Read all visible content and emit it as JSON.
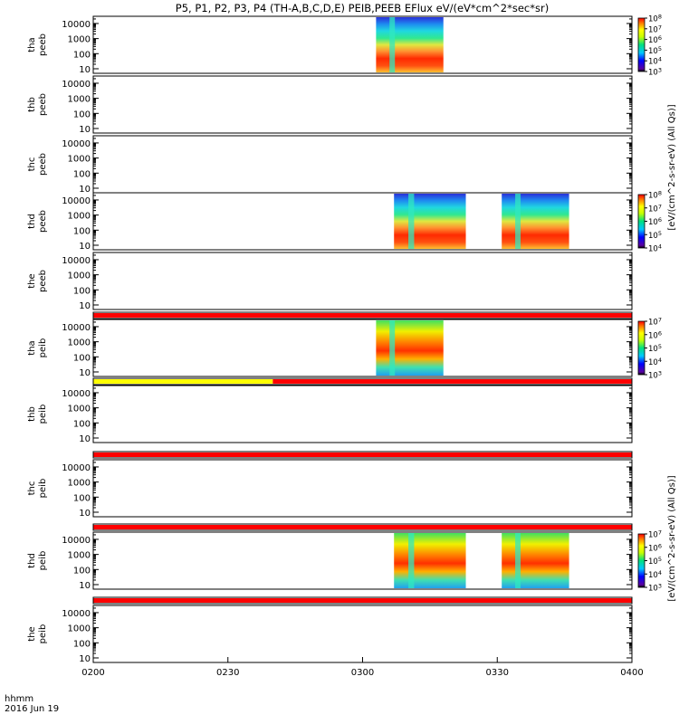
{
  "title": "P5, P1, P2, P3, P4 (TH-A,B,C,D,E) PEIB,PEEB EFlux eV/(eV*cm^2*sec*sr)",
  "corner_label_top": "hhmm",
  "corner_label_bottom": "2016 Jun 19",
  "colorbar_units_top": "[eV/(cm^2-s-sr-eV) (All Qs)]",
  "colorbar_units_bottom": "[eV/(cm^2-s-sr-eV) (All Qs)]",
  "colors": {
    "flag_red": "#ff0000",
    "flag_yellow": "#ffff00"
  },
  "chart_data": {
    "type": "heatmap",
    "x_ticks": [
      "0200",
      "0230",
      "0300",
      "0330",
      "0400"
    ],
    "xlim": [
      "02:00",
      "04:00"
    ],
    "y_ticks": [
      "10",
      "100",
      "1000",
      "10000"
    ],
    "ylim_eV": [
      5,
      30000
    ],
    "y_scale": "log",
    "panels": [
      {
        "name_line1": "tha",
        "name_line2": "peeb",
        "colorbar_ticks": [
          "10^3",
          "10^4",
          "10^5",
          "10^6",
          "10^7",
          "10^8"
        ],
        "data_intervals": [
          {
            "start": "03:03",
            "end": "03:18"
          }
        ]
      },
      {
        "name_line1": "thb",
        "name_line2": "peeb",
        "data_intervals": []
      },
      {
        "name_line1": "thc",
        "name_line2": "peeb",
        "data_intervals": []
      },
      {
        "name_line1": "thd",
        "name_line2": "peeb",
        "colorbar_ticks": [
          "10^4",
          "10^5",
          "10^6",
          "10^7",
          "10^8"
        ],
        "data_intervals": [
          {
            "start": "03:07",
            "end": "03:23"
          },
          {
            "start": "03:31",
            "end": "03:46"
          }
        ]
      },
      {
        "name_line1": "the",
        "name_line2": "peeb",
        "data_intervals": []
      },
      {
        "name_line1": "tha",
        "name_line2": "peib",
        "colorbar_ticks": [
          "10^3",
          "10^4",
          "10^5",
          "10^6",
          "10^7"
        ],
        "data_intervals": [
          {
            "start": "03:03",
            "end": "03:18"
          }
        ]
      },
      {
        "name_line1": "thb",
        "name_line2": "peib",
        "data_intervals": []
      },
      {
        "name_line1": "thc",
        "name_line2": "peib",
        "data_intervals": []
      },
      {
        "name_line1": "thd",
        "name_line2": "peib",
        "colorbar_ticks": [
          "10^3",
          "10^4",
          "10^5",
          "10^6",
          "10^7"
        ],
        "data_intervals": [
          {
            "start": "03:07",
            "end": "03:23"
          },
          {
            "start": "03:31",
            "end": "03:46"
          }
        ]
      },
      {
        "name_line1": "the",
        "name_line2": "peib",
        "data_intervals": []
      }
    ]
  }
}
